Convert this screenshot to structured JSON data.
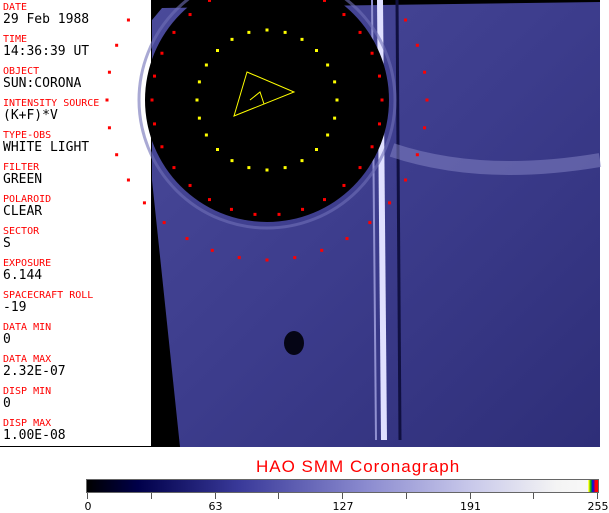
{
  "fields": [
    {
      "label": "DATE",
      "value": "29 Feb 1988"
    },
    {
      "label": "TIME",
      "value": "14:36:39 UT"
    },
    {
      "label": "OBJECT",
      "value": "SUN:CORONA"
    },
    {
      "label": "INTENSITY SOURCE",
      "value": "(K+F)*V"
    },
    {
      "label": "TYPE-OBS",
      "value": "WHITE LIGHT"
    },
    {
      "label": "FILTER",
      "value": "GREEN"
    },
    {
      "label": "POLAROID",
      "value": "CLEAR"
    },
    {
      "label": "SECTOR",
      "value": "S"
    },
    {
      "label": "EXPOSURE",
      "value": "6.144"
    },
    {
      "label": "SPACECRAFT ROLL",
      "value": "-19"
    },
    {
      "label": "DATA MIN",
      "value": "0"
    },
    {
      "label": "DATA MAX",
      "value": "2.32E-07"
    },
    {
      "label": "DISP MIN",
      "value": "0"
    },
    {
      "label": "DISP MAX",
      "value": "1.00E-08"
    }
  ],
  "title": "HAO  SMM Coronagraph",
  "colorbar": {
    "ticks": [
      "0",
      "63",
      "127",
      "191",
      "255"
    ],
    "colors": {
      "low": "#000000",
      "mid": "#8c8cd0",
      "high": "#f8f8f8"
    }
  }
}
